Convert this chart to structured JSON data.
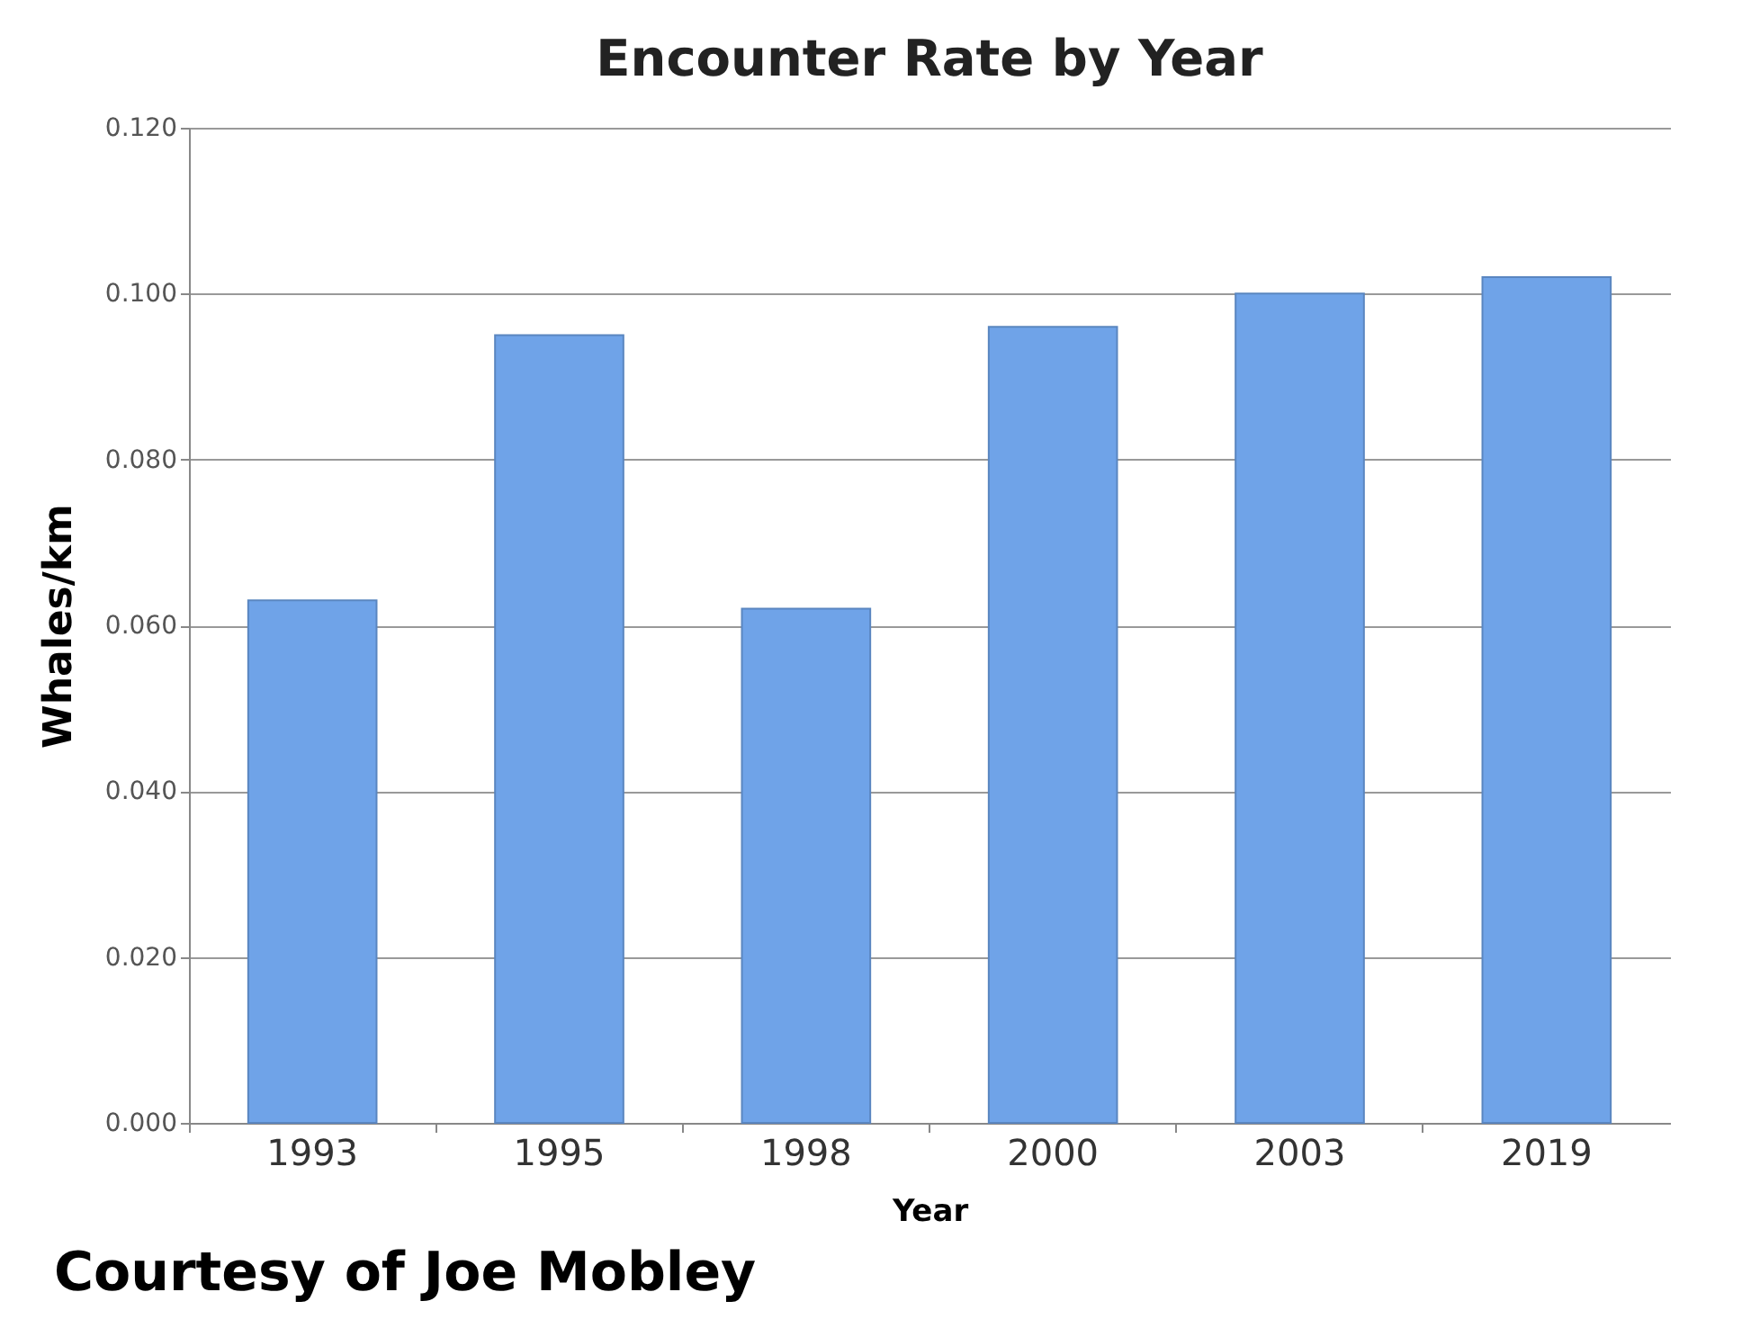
{
  "chart_data": {
    "type": "bar",
    "title": "Encounter Rate by Year",
    "xlabel": "Year",
    "ylabel": "Whales/km",
    "categories": [
      "1993",
      "1995",
      "1998",
      "2000",
      "2003",
      "2019"
    ],
    "values": [
      0.063,
      0.095,
      0.062,
      0.096,
      0.1,
      0.102
    ],
    "color": "#6fa3e8",
    "ylim": [
      0,
      0.12
    ],
    "yticks": [
      {
        "value": 0,
        "label": "0.000"
      },
      {
        "value": 0.02,
        "label": "0.020"
      },
      {
        "value": 0.04,
        "label": "0.040"
      },
      {
        "value": 0.06,
        "label": "0.060"
      },
      {
        "value": 0.08,
        "label": "0.080"
      },
      {
        "value": 0.1,
        "label": "0.100"
      },
      {
        "value": 0.12,
        "label": "0.120"
      }
    ],
    "grid": "y",
    "annotations": [
      "Courtesy of Joe Mobley"
    ]
  }
}
